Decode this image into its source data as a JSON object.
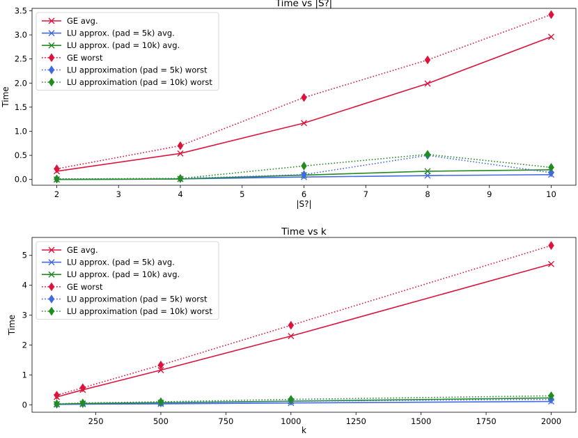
{
  "chart_data": [
    {
      "type": "line",
      "title": "Time vs |S?|",
      "xlabel": "|S?|",
      "ylabel": "Time",
      "xlim": [
        1.6,
        10.4
      ],
      "ylim": [
        -0.12,
        3.55
      ],
      "xticks": [
        2,
        3,
        4,
        5,
        6,
        7,
        8,
        9,
        10
      ],
      "xtick_labels": [
        "2",
        "3",
        "4",
        "5",
        "6",
        "7",
        "8",
        "9",
        "10"
      ],
      "yticks": [
        0.0,
        0.5,
        1.0,
        1.5,
        2.0,
        2.5,
        3.0,
        3.5
      ],
      "ytick_labels": [
        "0.0",
        "0.5",
        "1.0",
        "1.5",
        "2.0",
        "2.5",
        "3.0",
        "3.5"
      ],
      "legend_position": "top-left",
      "x": [
        2,
        4,
        6,
        8,
        10
      ],
      "series": [
        {
          "name": "GE avg.",
          "color": "#dc143c",
          "linestyle": "solid",
          "marker": "x",
          "values": [
            0.17,
            0.54,
            1.17,
            1.99,
            2.96
          ]
        },
        {
          "name": "LU approx. (pad = 5k) avg.",
          "color": "#4169e1",
          "linestyle": "solid",
          "marker": "x",
          "values": [
            0.0,
            0.01,
            0.05,
            0.08,
            0.1
          ]
        },
        {
          "name": "LU approx. (pad = 10k) avg.",
          "color": "#228b22",
          "linestyle": "solid",
          "marker": "x",
          "values": [
            0.0,
            0.01,
            0.09,
            0.17,
            0.2
          ]
        },
        {
          "name": "GE worst",
          "color": "#dc143c",
          "linestyle": "dotted",
          "marker": "diamond",
          "values": [
            0.22,
            0.7,
            1.7,
            2.48,
            3.42
          ]
        },
        {
          "name": "LU approximation (pad = 5k) worst",
          "color": "#4169e1",
          "linestyle": "dotted",
          "marker": "diamond",
          "values": [
            0.01,
            0.02,
            0.1,
            0.5,
            0.14
          ]
        },
        {
          "name": "LU approximation (pad = 10k) worst",
          "color": "#228b22",
          "linestyle": "dotted",
          "marker": "diamond",
          "values": [
            0.01,
            0.02,
            0.28,
            0.52,
            0.25
          ]
        }
      ]
    },
    {
      "type": "line",
      "title": "Time vs k",
      "xlabel": "k",
      "ylabel": "Time",
      "xlim": [
        5,
        2095
      ],
      "ylim": [
        -0.25,
        5.6
      ],
      "xticks": [
        250,
        500,
        750,
        1000,
        1250,
        1500,
        1750,
        2000
      ],
      "xtick_labels": [
        "250",
        "500",
        "750",
        "1000",
        "1250",
        "1500",
        "1750",
        "2000"
      ],
      "yticks": [
        0,
        1,
        2,
        3,
        4,
        5
      ],
      "ytick_labels": [
        "0",
        "1",
        "2",
        "3",
        "4",
        "5"
      ],
      "legend_position": "top-left",
      "x": [
        100,
        200,
        500,
        1000,
        2000
      ],
      "series": [
        {
          "name": "GE avg.",
          "color": "#dc143c",
          "linestyle": "solid",
          "marker": "x",
          "values": [
            0.26,
            0.5,
            1.16,
            2.3,
            4.71
          ]
        },
        {
          "name": "LU approx. (pad = 5k) avg.",
          "color": "#4169e1",
          "linestyle": "solid",
          "marker": "x",
          "values": [
            0.01,
            0.02,
            0.03,
            0.06,
            0.11
          ]
        },
        {
          "name": "LU approx. (pad = 10k) avg.",
          "color": "#228b22",
          "linestyle": "solid",
          "marker": "x",
          "values": [
            0.02,
            0.04,
            0.07,
            0.12,
            0.23
          ]
        },
        {
          "name": "GE worst",
          "color": "#dc143c",
          "linestyle": "dotted",
          "marker": "diamond",
          "values": [
            0.32,
            0.57,
            1.33,
            2.66,
            5.33
          ]
        },
        {
          "name": "LU approximation (pad = 5k) worst",
          "color": "#4169e1",
          "linestyle": "dotted",
          "marker": "diamond",
          "values": [
            0.02,
            0.04,
            0.06,
            0.12,
            0.18
          ]
        },
        {
          "name": "LU approximation (pad = 10k) worst",
          "color": "#228b22",
          "linestyle": "dotted",
          "marker": "diamond",
          "values": [
            0.03,
            0.06,
            0.1,
            0.18,
            0.3
          ]
        }
      ]
    }
  ]
}
